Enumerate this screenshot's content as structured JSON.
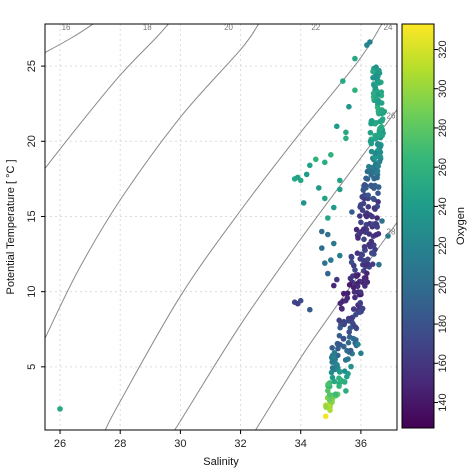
{
  "chart_data": {
    "type": "scatter",
    "title": "",
    "xlabel": "Salinity",
    "ylabel": "Potential Temperature [ °C ]",
    "colorbar_label": "Oxygen",
    "xlim": [
      25.5,
      37.2
    ],
    "ylim": [
      0.8,
      27.8
    ],
    "x_ticks": [
      26,
      28,
      30,
      32,
      34,
      36
    ],
    "y_ticks": [
      5,
      10,
      15,
      20,
      25
    ],
    "grid": true,
    "color_range": [
      127,
      333
    ],
    "colorbar_ticks": [
      140,
      160,
      180,
      200,
      220,
      240,
      260,
      280,
      300,
      320
    ],
    "colormap": [
      "#440154",
      "#482878",
      "#3e4989",
      "#31688e",
      "#26828e",
      "#1f9e89",
      "#35b779",
      "#6ece58",
      "#b5de2b",
      "#fde725"
    ],
    "density_contours": [
      {
        "label": "16",
        "points": [
          [
            25.5,
            25.9
          ],
          [
            26.4,
            26.9
          ],
          [
            27.1,
            27.8
          ]
        ]
      },
      {
        "label": "18",
        "points": [
          [
            25.5,
            18.2
          ],
          [
            26.6,
            21.0
          ],
          [
            28.0,
            24.4
          ],
          [
            29.2,
            26.9
          ],
          [
            29.6,
            27.8
          ]
        ]
      },
      {
        "label": "20",
        "points": [
          [
            25.5,
            6.9
          ],
          [
            26.6,
            11.4
          ],
          [
            28.0,
            16.1
          ],
          [
            30.0,
            21.6
          ],
          [
            32.0,
            26.1
          ],
          [
            32.6,
            27.8
          ]
        ]
      },
      {
        "label": "22",
        "points": [
          [
            27.5,
            0.8
          ],
          [
            28.0,
            2.7
          ],
          [
            30.0,
            9.7
          ],
          [
            32.0,
            15.4
          ],
          [
            34.0,
            20.6
          ],
          [
            35.9,
            25.3
          ],
          [
            36.7,
            27.8
          ]
        ]
      },
      {
        "label": "24",
        "points": [
          [
            29.8,
            0.8
          ],
          [
            30.0,
            1.4
          ],
          [
            32.0,
            7.8
          ],
          [
            34.0,
            13.5
          ],
          [
            36.0,
            18.9
          ],
          [
            37.2,
            22.1
          ]
        ]
      },
      {
        "label": "26",
        "points": [
          [
            32.5,
            0.8
          ],
          [
            34.0,
            5.6
          ],
          [
            35.0,
            8.5
          ],
          [
            36.0,
            11.3
          ],
          [
            37.2,
            14.6
          ]
        ]
      }
    ],
    "contour_label_positions": [
      {
        "label": "16",
        "x": 26.2,
        "y": 27.6
      },
      {
        "label": "18",
        "x": 28.9,
        "y": 27.6
      },
      {
        "label": "20",
        "x": 31.6,
        "y": 27.6
      },
      {
        "label": "22",
        "x": 34.5,
        "y": 27.6
      },
      {
        "label": "24",
        "x": 36.9,
        "y": 27.6
      },
      {
        "label": "26",
        "x": 37.0,
        "y": 21.7
      },
      {
        "label": "28",
        "x": 37.0,
        "y": 14.0
      }
    ],
    "series": [
      {
        "points": [
          [
            26.0,
            2.2,
            250
          ],
          [
            33.8,
            9.3,
            170
          ],
          [
            33.9,
            9.2,
            165
          ],
          [
            34.0,
            9.4,
            175
          ],
          [
            34.3,
            8.8,
            185
          ],
          [
            33.8,
            17.5,
            250
          ],
          [
            34.0,
            17.4,
            250
          ],
          [
            33.9,
            17.6,
            245
          ],
          [
            34.2,
            17.8,
            240
          ],
          [
            34.3,
            18.4,
            245
          ],
          [
            34.5,
            18.8,
            260
          ],
          [
            34.8,
            18.6,
            255
          ],
          [
            35.0,
            19.1,
            260
          ],
          [
            34.6,
            16.9,
            240
          ],
          [
            34.8,
            16.2,
            245
          ],
          [
            34.1,
            15.9,
            232
          ],
          [
            34.9,
            14.9,
            250
          ],
          [
            35.1,
            15.6,
            240
          ],
          [
            34.7,
            14.0,
            200
          ],
          [
            34.9,
            13.8,
            205
          ],
          [
            35.1,
            13.2,
            210
          ],
          [
            35.5,
            20.6,
            250
          ],
          [
            35.2,
            21.0,
            240
          ],
          [
            35.6,
            22.3,
            235
          ],
          [
            35.4,
            24.0,
            250
          ],
          [
            35.8,
            23.4,
            260
          ],
          [
            35.5,
            20.2,
            255
          ],
          [
            35.3,
            12.4,
            215
          ],
          [
            34.8,
            11.9,
            205
          ],
          [
            35.0,
            12.1,
            210
          ],
          [
            35.7,
            15.3,
            190
          ],
          [
            35.3,
            16.8,
            240
          ],
          [
            35.1,
            10.4,
            150
          ],
          [
            35.2,
            10.8,
            160
          ],
          [
            34.9,
            11.2,
            195
          ],
          [
            34.7,
            12.9,
            200
          ],
          [
            35.9,
            6.5,
            220
          ],
          [
            36.0,
            5.9,
            215
          ],
          [
            35.5,
            3.4,
            255
          ],
          [
            36.9,
            13.7,
            210
          ],
          [
            36.7,
            14.7,
            205
          ],
          [
            36.6,
            11.8,
            205
          ],
          [
            35.3,
            17.4,
            245
          ],
          [
            35.8,
            25.5,
            250
          ],
          [
            36.3,
            26.6,
            215
          ],
          [
            36.2,
            26.4,
            220
          ]
        ],
        "band": {
          "s_lo": [
            34.8,
            34.8,
            34.9,
            34.9,
            35.0,
            35.0,
            35.1,
            35.2,
            35.3,
            35.4,
            35.5,
            35.6,
            35.7,
            35.8,
            35.9,
            36.0,
            36.1,
            36.2,
            36.3,
            36.3,
            36.3,
            36.4,
            36.4,
            36.4
          ],
          "s_hi": [
            34.9,
            35.1,
            35.3,
            35.5,
            35.7,
            35.8,
            35.9,
            36.0,
            36.1,
            36.2,
            36.3,
            36.4,
            36.5,
            36.6,
            36.6,
            36.6,
            36.6,
            36.6,
            36.7,
            36.7,
            36.8,
            36.8,
            36.7,
            36.6
          ],
          "t": [
            1.8,
            2.5,
            3.2,
            4.0,
            5.0,
            6.0,
            7.0,
            8.0,
            9.0,
            10.0,
            11.0,
            12.0,
            13.0,
            14.0,
            15.0,
            16.0,
            17.0,
            18.0,
            19.0,
            20.0,
            21.0,
            22.0,
            23.5,
            25.0
          ],
          "oxygen": [
            320,
            300,
            280,
            255,
            220,
            200,
            185,
            175,
            160,
            150,
            150,
            170,
            160,
            160,
            160,
            170,
            185,
            205,
            230,
            240,
            245,
            250,
            245,
            240
          ]
        }
      }
    ]
  }
}
